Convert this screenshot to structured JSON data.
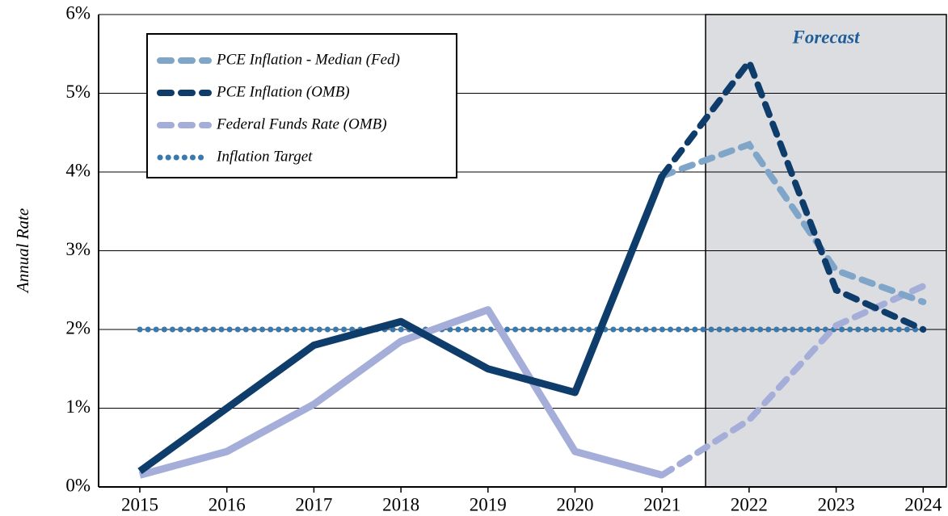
{
  "chart_data": {
    "type": "line",
    "y_label": "Annual Rate",
    "categories": [
      "2015",
      "2016",
      "2017",
      "2018",
      "2019",
      "2020",
      "2021",
      "2022",
      "2023",
      "2024"
    ],
    "series": [
      {
        "name": "PCE Inflation - Median (Fed)",
        "color": "#7fa6c8",
        "line": "dashed",
        "values": [
          null,
          null,
          null,
          null,
          null,
          null,
          3.95,
          4.35,
          2.75,
          2.35
        ]
      },
      {
        "name": "PCE Inflation (OMB)",
        "color": "#0e3d6b",
        "line": "solid",
        "values": [
          0.2,
          1.0,
          1.8,
          2.1,
          1.5,
          1.2,
          3.95,
          5.4,
          2.5,
          2.0
        ]
      },
      {
        "name": "Federal Funds Rate (OMB)",
        "color": "#a5add9",
        "line": "solid",
        "values": [
          0.15,
          0.45,
          1.05,
          1.85,
          2.25,
          0.45,
          0.15,
          0.85,
          2.05,
          2.55
        ]
      },
      {
        "name": "Inflation Target",
        "color": "#3a79ad",
        "line": "dotted",
        "values": [
          2,
          2,
          2,
          2,
          2,
          2,
          2,
          2,
          2,
          2
        ]
      }
    ],
    "forecast": {
      "label": "Forecast",
      "start": "2022"
    },
    "ylim": [
      0,
      6
    ],
    "yticks": [
      {
        "value": 0,
        "label": "0%"
      },
      {
        "value": 1,
        "label": "1%"
      },
      {
        "value": 2,
        "label": "2%"
      },
      {
        "value": 3,
        "label": "3%"
      },
      {
        "value": 4,
        "label": "4%"
      },
      {
        "value": 5,
        "label": "5%"
      },
      {
        "value": 6,
        "label": "6%"
      }
    ],
    "grid": true,
    "legend": "top-left"
  }
}
